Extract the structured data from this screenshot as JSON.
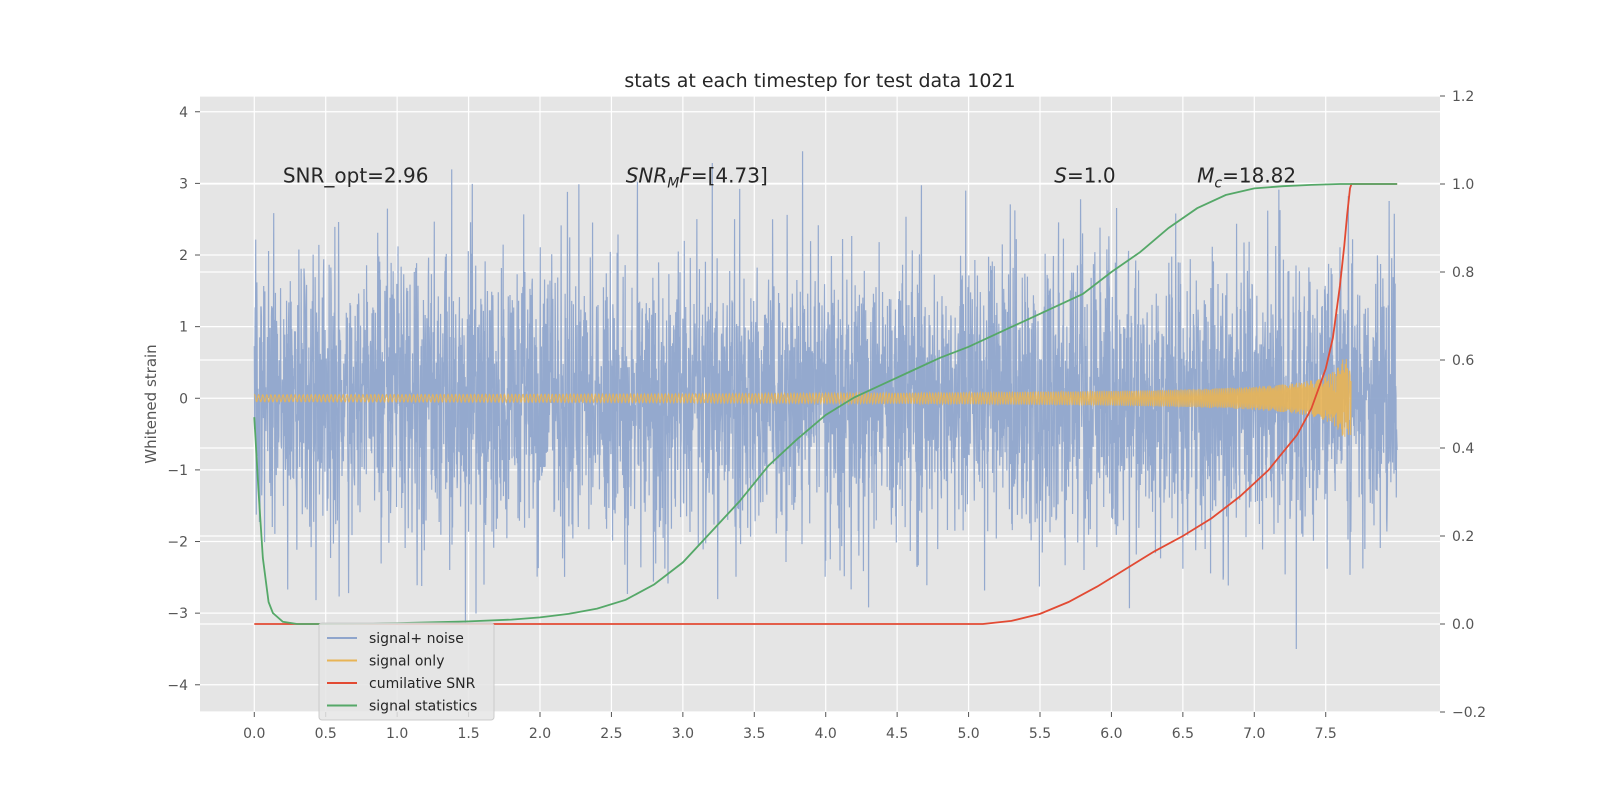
{
  "chart_data": {
    "type": "line",
    "title": "stats at each timestep for test data 1021",
    "xlabel": "",
    "ylabel": "Whitened strain",
    "y2label": "",
    "xlim": [
      -0.38,
      8.3
    ],
    "ylim": [
      -4.38,
      4.22
    ],
    "y2lim": [
      -0.2,
      1.2
    ],
    "xticks": [
      "0.0",
      "0.5",
      "1.0",
      "1.5",
      "2.0",
      "2.5",
      "3.0",
      "3.5",
      "4.0",
      "4.5",
      "5.0",
      "5.5",
      "6.0",
      "6.5",
      "7.0",
      "7.5"
    ],
    "yticks": [
      "4",
      "3",
      "2",
      "1",
      "0",
      "−1",
      "−2",
      "−3",
      "−4"
    ],
    "y2ticks": [
      "1.2",
      "1.0",
      "0.8",
      "0.6",
      "0.4",
      "0.2",
      "0.0",
      "−0.2"
    ],
    "grid": true,
    "legend_position": "lower-left",
    "annotations": [
      {
        "text": "SNR_opt=2.96",
        "x": 0.2,
        "y": 3.0
      },
      {
        "text": "SNR_MF=[4.73]",
        "x": 2.6,
        "y": 3.0
      },
      {
        "text": "S=1.0",
        "x": 5.6,
        "y": 3.0
      },
      {
        "text": "M_c=18.82",
        "x": 6.6,
        "y": 3.0
      }
    ],
    "series": [
      {
        "name": "signal+ noise",
        "axis": "left",
        "color": "#8fa5cc",
        "description_kind": "noise",
        "x_range": [
          0.0,
          8.0
        ],
        "std": 1.0
      },
      {
        "name": "signal only",
        "axis": "left",
        "color": "#e8b455",
        "description_kind": "chirp",
        "x_range": [
          0.0,
          7.68
        ],
        "peak_amplitude": 0.55
      },
      {
        "name": "cumilative SNR",
        "axis": "right",
        "color": "#e24a33",
        "x": [
          0.0,
          1.0,
          2.0,
          3.0,
          4.0,
          5.0,
          5.1,
          5.3,
          5.5,
          5.7,
          5.9,
          6.1,
          6.3,
          6.5,
          6.7,
          6.9,
          7.1,
          7.3,
          7.4,
          7.5,
          7.55,
          7.6,
          7.63,
          7.65,
          7.67,
          7.68,
          7.7,
          8.0
        ],
        "values": [
          0.0,
          0.0,
          0.0,
          0.0,
          0.0,
          0.0,
          0.0,
          0.007,
          0.023,
          0.05,
          0.085,
          0.125,
          0.165,
          0.2,
          0.24,
          0.29,
          0.35,
          0.43,
          0.49,
          0.58,
          0.65,
          0.77,
          0.86,
          0.93,
          0.99,
          1.0,
          1.0,
          1.0
        ]
      },
      {
        "name": "signal statistics",
        "axis": "right",
        "color": "#55a868",
        "x": [
          0.0,
          0.03,
          0.06,
          0.1,
          0.13,
          0.2,
          0.3,
          0.5,
          1.0,
          1.5,
          1.8,
          2.0,
          2.2,
          2.4,
          2.6,
          2.8,
          3.0,
          3.2,
          3.4,
          3.6,
          3.8,
          4.0,
          4.2,
          4.4,
          4.6,
          4.8,
          5.0,
          5.2,
          5.4,
          5.6,
          5.8,
          6.0,
          6.2,
          6.4,
          6.6,
          6.8,
          7.0,
          7.2,
          7.4,
          7.6,
          7.7,
          7.8,
          8.0
        ],
        "values": [
          0.47,
          0.3,
          0.15,
          0.05,
          0.025,
          0.005,
          0.0,
          0.0,
          0.002,
          0.006,
          0.01,
          0.015,
          0.023,
          0.035,
          0.055,
          0.09,
          0.14,
          0.21,
          0.28,
          0.36,
          0.42,
          0.475,
          0.515,
          0.545,
          0.575,
          0.605,
          0.63,
          0.66,
          0.69,
          0.72,
          0.75,
          0.8,
          0.845,
          0.9,
          0.945,
          0.975,
          0.99,
          0.995,
          0.998,
          1.0,
          1.0,
          1.0,
          1.0
        ]
      }
    ]
  }
}
